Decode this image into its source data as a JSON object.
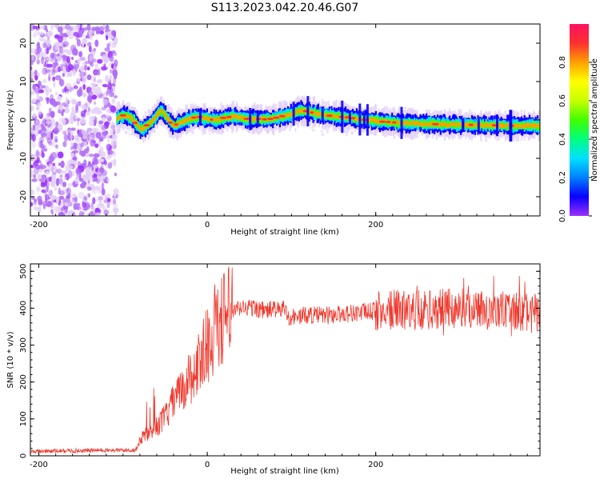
{
  "title": "S113.2023.042.20.46.G07",
  "colors": {
    "snr_line": "#ee3a2e",
    "background": "#ffffff",
    "axis": "#000000",
    "colormap": [
      "#ffffff",
      "#e4d0f7",
      "#9b30ff",
      "#0a00ff",
      "#0080ff",
      "#00e0ff",
      "#00ff80",
      "#40ff00",
      "#c8ff00",
      "#ffff00",
      "#ffa000",
      "#ff3030",
      "#ff1060"
    ]
  },
  "chart_data": [
    {
      "type": "heatmap",
      "xlabel": "Height of straight line (km)",
      "ylabel": "Frequency (Hz)",
      "xlim": [
        -210,
        395
      ],
      "ylim": [
        -25,
        25
      ],
      "xticks": [
        -200,
        0,
        200
      ],
      "yticks": [
        -20,
        -10,
        0,
        10,
        20
      ],
      "colorbar": {
        "label": "Normalized spectral amplitude",
        "range": [
          0,
          1
        ],
        "ticks": [
          0.0,
          0.2,
          0.4,
          0.6,
          0.8
        ]
      },
      "noise_region_x": [
        -210,
        -108
      ],
      "signal_track": {
        "x": [
          -108,
          -100,
          -95,
          -90,
          -85,
          -80,
          -75,
          -70,
          -65,
          -60,
          -55,
          -50,
          -45,
          -40,
          -35,
          -30,
          -20,
          -10,
          0,
          10,
          20,
          30,
          40,
          50,
          60,
          70,
          80,
          90,
          100,
          110,
          120,
          130,
          140,
          150,
          160,
          170,
          180,
          190,
          200,
          210,
          220,
          230,
          240,
          250,
          260,
          270,
          280,
          290,
          300,
          310,
          320,
          330,
          340,
          350,
          360,
          370,
          380,
          395
        ],
        "y": [
          0.5,
          1.2,
          1.0,
          0.3,
          -1.0,
          -2.5,
          -2.0,
          -1.0,
          0.0,
          1.5,
          2.5,
          1.0,
          -0.5,
          -1.5,
          -1.0,
          -0.5,
          0.5,
          0.8,
          0.2,
          0.0,
          0.6,
          0.9,
          0.5,
          0.2,
          0.3,
          0.1,
          0.5,
          1.0,
          1.5,
          2.5,
          2.2,
          1.6,
          1.2,
          1.0,
          0.8,
          0.6,
          0.1,
          0.0,
          -0.2,
          -0.5,
          -0.6,
          -0.8,
          -0.9,
          -1.0,
          -1.0,
          -1.1,
          -1.2,
          -1.2,
          -1.3,
          -1.3,
          -1.3,
          -1.4,
          -1.4,
          -1.4,
          -1.5,
          -1.5,
          -1.5,
          -1.5
        ]
      }
    },
    {
      "type": "line",
      "xlabel": "Height of straight line (km)",
      "ylabel": "SNR (10 * v/v)",
      "xlim": [
        -210,
        395
      ],
      "ylim": [
        0,
        520
      ],
      "xticks": [
        -200,
        0,
        200
      ],
      "yticks": [
        0,
        100,
        200,
        300,
        400,
        500
      ],
      "series": [
        {
          "x": [
            -210,
            -180,
            -150,
            -120,
            -100,
            -85,
            -80,
            -75,
            -70,
            -65,
            -60,
            -55,
            -50,
            -45,
            -40,
            -35,
            -30,
            -25,
            -20,
            -15,
            -10,
            -5,
            0,
            5,
            10,
            15,
            20,
            25,
            30,
            35,
            40,
            50,
            60,
            70,
            80,
            85,
            90,
            95,
            100,
            110,
            120,
            140,
            160,
            180,
            200,
            220,
            240,
            260,
            280,
            300,
            320,
            340,
            360,
            380,
            395
          ],
          "y": [
            12,
            13,
            14,
            15,
            15,
            16,
            40,
            60,
            55,
            70,
            80,
            90,
            110,
            120,
            150,
            160,
            180,
            200,
            210,
            230,
            250,
            280,
            300,
            320,
            345,
            360,
            375,
            385,
            390,
            395,
            400,
            402,
            398,
            392,
            400,
            390,
            405,
            380,
            375,
            378,
            382,
            380,
            385,
            388,
            392,
            395,
            395,
            395,
            398,
            400,
            398,
            395,
            390,
            388,
            385
          ]
        }
      ]
    }
  ]
}
